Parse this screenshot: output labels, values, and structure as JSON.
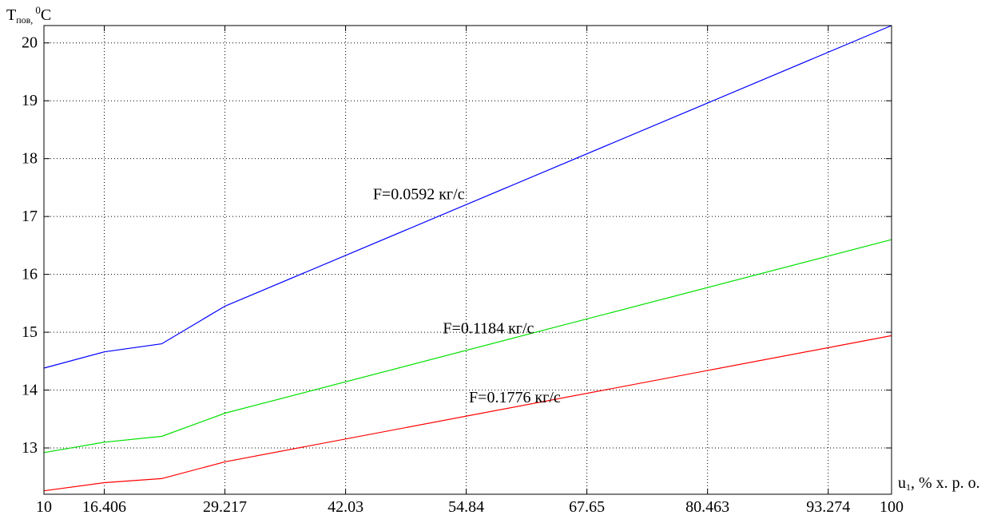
{
  "chart_data": {
    "type": "line",
    "ylabel": {
      "main": "T",
      "sub": "пов,",
      "sup": "0",
      "unit": "C"
    },
    "xlabel": {
      "main": "u",
      "sub": "1",
      "rest": ", % х. р. о."
    },
    "xlim": [
      10,
      100
    ],
    "ylim": [
      12.2,
      20.3
    ],
    "x_ticks": [
      10,
      16.406,
      29.217,
      42.03,
      54.84,
      67.65,
      80.463,
      93.274,
      100
    ],
    "x_tick_labels": [
      "10",
      "16.406",
      "29.217",
      "42.03",
      "54.84",
      "67.65",
      "80.463",
      "93.274",
      "100"
    ],
    "y_ticks": [
      13,
      14,
      15,
      16,
      17,
      18,
      19,
      20
    ],
    "y_tick_labels": [
      "13",
      "14",
      "15",
      "16",
      "17",
      "18",
      "19",
      "20"
    ],
    "grid": true,
    "series": [
      {
        "name": "F=0.0592 кг/с",
        "color": "#0000ff",
        "x": [
          10,
          16.406,
          22.5,
          29.217,
          100
        ],
        "y": [
          14.38,
          14.66,
          14.8,
          15.45,
          20.3
        ]
      },
      {
        "name": "F=0.1184 кг/с",
        "color": "#00e000",
        "x": [
          10,
          16.406,
          22.5,
          29.217,
          100
        ],
        "y": [
          12.92,
          13.1,
          13.2,
          13.6,
          16.6
        ]
      },
      {
        "name": "F=0.1776 кг/с",
        "color": "#ff0000",
        "x": [
          10,
          16.406,
          22.5,
          29.217,
          100
        ],
        "y": [
          12.26,
          12.4,
          12.47,
          12.76,
          14.94
        ]
      }
    ],
    "annotations": [
      {
        "text": "F=0.0592 кг/с",
        "x": 49.8,
        "y": 17.3
      },
      {
        "text": "F=0.1184 кг/с",
        "x": 57.2,
        "y": 14.98
      },
      {
        "text": "F=0.1776 кг/с",
        "x": 60.0,
        "y": 13.79
      }
    ]
  }
}
